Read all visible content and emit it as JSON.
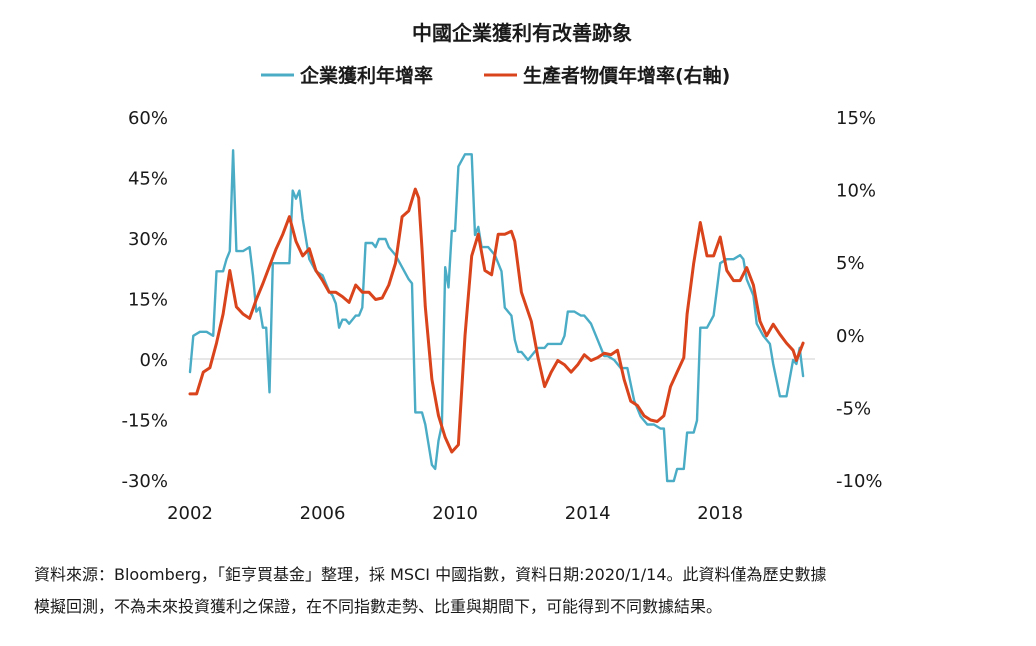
{
  "chart_data": {
    "type": "line",
    "title": "中國企業獲利有改善跡象",
    "x_ticks": [
      "2002",
      "2006",
      "2010",
      "2014",
      "2018"
    ],
    "y_left_ticks": [
      "60%",
      "45%",
      "30%",
      "15%",
      "0%",
      "-15%",
      "-30%"
    ],
    "y_right_ticks": [
      "15%",
      "10%",
      "5%",
      "0%",
      "-5%",
      "-10%"
    ],
    "y_left_range": [
      -30,
      60
    ],
    "y_right_range": [
      -10,
      15
    ],
    "x_range": [
      2002,
      2020.8
    ],
    "series": [
      {
        "name": "企業獲利年增率",
        "axis": "left",
        "color": "#4bacc6",
        "points": [
          [
            2002.0,
            -3
          ],
          [
            2002.1,
            6
          ],
          [
            2002.3,
            7
          ],
          [
            2002.5,
            7
          ],
          [
            2002.7,
            6
          ],
          [
            2002.8,
            22
          ],
          [
            2003.0,
            22
          ],
          [
            2003.1,
            25
          ],
          [
            2003.2,
            27
          ],
          [
            2003.3,
            52
          ],
          [
            2003.4,
            27
          ],
          [
            2003.6,
            27
          ],
          [
            2003.8,
            28
          ],
          [
            2003.9,
            21
          ],
          [
            2004.0,
            12
          ],
          [
            2004.1,
            13
          ],
          [
            2004.2,
            8
          ],
          [
            2004.3,
            8
          ],
          [
            2004.4,
            -8
          ],
          [
            2004.5,
            24
          ],
          [
            2004.7,
            24
          ],
          [
            2004.9,
            24
          ],
          [
            2005.0,
            24
          ],
          [
            2005.1,
            42
          ],
          [
            2005.2,
            40
          ],
          [
            2005.3,
            42
          ],
          [
            2005.4,
            35
          ],
          [
            2005.6,
            25
          ],
          [
            2005.8,
            22
          ],
          [
            2006.0,
            21
          ],
          [
            2006.1,
            19
          ],
          [
            2006.2,
            17
          ],
          [
            2006.3,
            16
          ],
          [
            2006.4,
            14
          ],
          [
            2006.5,
            8
          ],
          [
            2006.6,
            10
          ],
          [
            2006.7,
            10
          ],
          [
            2006.8,
            9
          ],
          [
            2007.0,
            11
          ],
          [
            2007.1,
            11
          ],
          [
            2007.2,
            13
          ],
          [
            2007.3,
            29
          ],
          [
            2007.5,
            29
          ],
          [
            2007.6,
            28
          ],
          [
            2007.7,
            30
          ],
          [
            2007.9,
            30
          ],
          [
            2008.0,
            28
          ],
          [
            2008.2,
            26
          ],
          [
            2008.4,
            23
          ],
          [
            2008.6,
            20
          ],
          [
            2008.7,
            19
          ],
          [
            2008.8,
            -13
          ],
          [
            2009.0,
            -13
          ],
          [
            2009.1,
            -16
          ],
          [
            2009.2,
            -21
          ],
          [
            2009.3,
            -26
          ],
          [
            2009.4,
            -27
          ],
          [
            2009.5,
            -20
          ],
          [
            2009.6,
            -16
          ],
          [
            2009.7,
            23
          ],
          [
            2009.8,
            18
          ],
          [
            2009.9,
            32
          ],
          [
            2010.0,
            32
          ],
          [
            2010.1,
            48
          ],
          [
            2010.3,
            51
          ],
          [
            2010.5,
            51
          ],
          [
            2010.6,
            31
          ],
          [
            2010.7,
            33
          ],
          [
            2010.8,
            28
          ],
          [
            2011.0,
            28
          ],
          [
            2011.2,
            26
          ],
          [
            2011.4,
            22
          ],
          [
            2011.5,
            13
          ],
          [
            2011.7,
            11
          ],
          [
            2011.8,
            5
          ],
          [
            2011.9,
            2
          ],
          [
            2012.0,
            2
          ],
          [
            2012.2,
            0
          ],
          [
            2012.4,
            2
          ],
          [
            2012.5,
            3
          ],
          [
            2012.7,
            3
          ],
          [
            2012.8,
            4
          ],
          [
            2013.0,
            4
          ],
          [
            2013.2,
            4
          ],
          [
            2013.3,
            6
          ],
          [
            2013.4,
            12
          ],
          [
            2013.6,
            12
          ],
          [
            2013.8,
            11
          ],
          [
            2013.9,
            11
          ],
          [
            2014.0,
            10
          ],
          [
            2014.1,
            9
          ],
          [
            2014.3,
            5
          ],
          [
            2014.5,
            1
          ],
          [
            2014.6,
            1
          ],
          [
            2014.8,
            0
          ],
          [
            2015.0,
            -2
          ],
          [
            2015.2,
            -2
          ],
          [
            2015.4,
            -10
          ],
          [
            2015.6,
            -14
          ],
          [
            2015.8,
            -16
          ],
          [
            2016.0,
            -16
          ],
          [
            2016.2,
            -17
          ],
          [
            2016.3,
            -17
          ],
          [
            2016.4,
            -30
          ],
          [
            2016.6,
            -30
          ],
          [
            2016.7,
            -27
          ],
          [
            2016.9,
            -27
          ],
          [
            2017.0,
            -18
          ],
          [
            2017.2,
            -18
          ],
          [
            2017.3,
            -15
          ],
          [
            2017.4,
            8
          ],
          [
            2017.6,
            8
          ],
          [
            2017.8,
            11
          ],
          [
            2018.0,
            24
          ],
          [
            2018.2,
            25
          ],
          [
            2018.4,
            25
          ],
          [
            2018.6,
            26
          ],
          [
            2018.7,
            25
          ],
          [
            2018.8,
            20
          ],
          [
            2019.0,
            16
          ],
          [
            2019.1,
            9
          ],
          [
            2019.3,
            6
          ],
          [
            2019.5,
            4
          ],
          [
            2019.6,
            -1
          ],
          [
            2019.8,
            -9
          ],
          [
            2020.0,
            -9
          ],
          [
            2020.2,
            0
          ],
          [
            2020.3,
            -1
          ],
          [
            2020.4,
            3
          ],
          [
            2020.5,
            -4
          ]
        ]
      },
      {
        "name": "生產者物價年增率(右軸)",
        "axis": "right",
        "color": "#d9441c",
        "points": [
          [
            2002.0,
            -4
          ],
          [
            2002.2,
            -4
          ],
          [
            2002.4,
            -2.5
          ],
          [
            2002.6,
            -2.2
          ],
          [
            2002.8,
            -0.5
          ],
          [
            2003.0,
            1.5
          ],
          [
            2003.2,
            4.5
          ],
          [
            2003.4,
            2
          ],
          [
            2003.6,
            1.5
          ],
          [
            2003.8,
            1.2
          ],
          [
            2004.0,
            2.5
          ],
          [
            2004.2,
            3.6
          ],
          [
            2004.4,
            4.8
          ],
          [
            2004.6,
            6
          ],
          [
            2004.8,
            7
          ],
          [
            2005.0,
            8.2
          ],
          [
            2005.2,
            6.5
          ],
          [
            2005.4,
            5.5
          ],
          [
            2005.6,
            6
          ],
          [
            2005.8,
            4.5
          ],
          [
            2006.0,
            3.8
          ],
          [
            2006.2,
            3
          ],
          [
            2006.4,
            3
          ],
          [
            2006.6,
            2.7
          ],
          [
            2006.8,
            2.3
          ],
          [
            2007.0,
            3.5
          ],
          [
            2007.2,
            3
          ],
          [
            2007.4,
            3
          ],
          [
            2007.6,
            2.5
          ],
          [
            2007.8,
            2.6
          ],
          [
            2008.0,
            3.5
          ],
          [
            2008.2,
            5
          ],
          [
            2008.4,
            8.2
          ],
          [
            2008.6,
            8.6
          ],
          [
            2008.8,
            10.1
          ],
          [
            2008.9,
            9.5
          ],
          [
            2009.0,
            6
          ],
          [
            2009.1,
            2
          ],
          [
            2009.3,
            -3
          ],
          [
            2009.5,
            -5.5
          ],
          [
            2009.7,
            -7
          ],
          [
            2009.9,
            -8
          ],
          [
            2010.1,
            -7.5
          ],
          [
            2010.3,
            0
          ],
          [
            2010.5,
            5.5
          ],
          [
            2010.7,
            7
          ],
          [
            2010.9,
            4.5
          ],
          [
            2011.1,
            4.2
          ],
          [
            2011.3,
            7
          ],
          [
            2011.5,
            7
          ],
          [
            2011.7,
            7.2
          ],
          [
            2011.8,
            6.5
          ],
          [
            2012.0,
            3
          ],
          [
            2012.3,
            1
          ],
          [
            2012.5,
            -1.5
          ],
          [
            2012.7,
            -3.5
          ],
          [
            2012.9,
            -2.5
          ],
          [
            2013.1,
            -1.7
          ],
          [
            2013.3,
            -2
          ],
          [
            2013.5,
            -2.5
          ],
          [
            2013.7,
            -2
          ],
          [
            2013.9,
            -1.3
          ],
          [
            2014.1,
            -1.7
          ],
          [
            2014.3,
            -1.5
          ],
          [
            2014.5,
            -1.2
          ],
          [
            2014.7,
            -1.3
          ],
          [
            2014.9,
            -1
          ],
          [
            2015.1,
            -3
          ],
          [
            2015.3,
            -4.5
          ],
          [
            2015.5,
            -4.8
          ],
          [
            2015.7,
            -5.5
          ],
          [
            2015.9,
            -5.8
          ],
          [
            2016.1,
            -5.9
          ],
          [
            2016.3,
            -5.5
          ],
          [
            2016.5,
            -3.5
          ],
          [
            2016.7,
            -2.5
          ],
          [
            2016.9,
            -1.5
          ],
          [
            2017.0,
            1.5
          ],
          [
            2017.2,
            5
          ],
          [
            2017.4,
            7.8
          ],
          [
            2017.6,
            5.5
          ],
          [
            2017.8,
            5.5
          ],
          [
            2018.0,
            6.8
          ],
          [
            2018.2,
            4.5
          ],
          [
            2018.4,
            3.8
          ],
          [
            2018.6,
            3.8
          ],
          [
            2018.8,
            4.7
          ],
          [
            2019.0,
            3.5
          ],
          [
            2019.2,
            1
          ],
          [
            2019.4,
            0
          ],
          [
            2019.6,
            0.8
          ],
          [
            2019.8,
            0.1
          ],
          [
            2020.0,
            -0.5
          ],
          [
            2020.2,
            -1
          ],
          [
            2020.3,
            -1.7
          ],
          [
            2020.5,
            -0.5
          ]
        ]
      }
    ]
  },
  "source_note_line1": "資料來源：Bloomberg，「鉅亨買基金」整理，採 MSCI 中國指數，資料日期:2020/1/14。此資料僅為歷史數據",
  "source_note_line2": "模擬回測，不為未來投資獲利之保證，在不同指數走勢、比重與期間下，可能得到不同數據結果。"
}
